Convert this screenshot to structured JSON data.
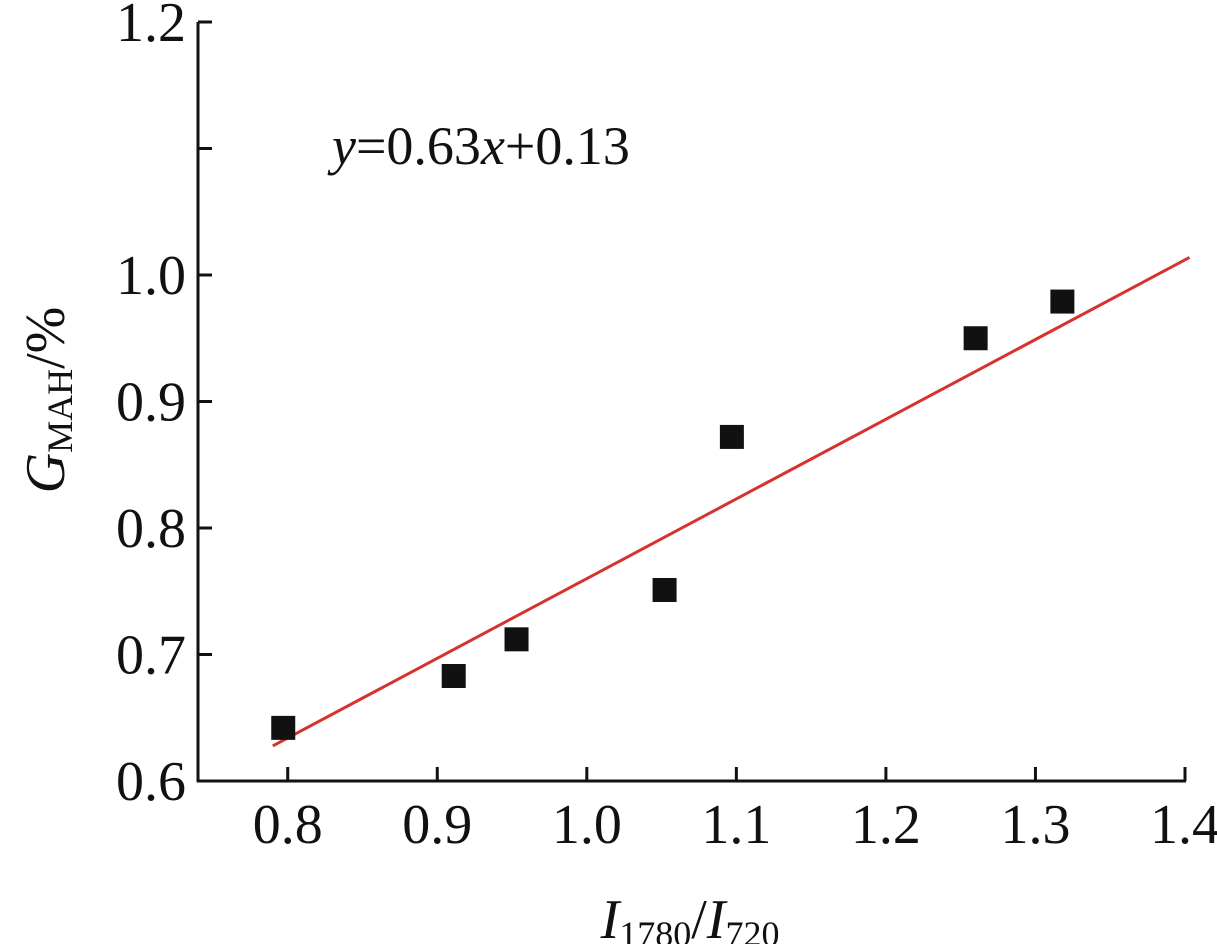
{
  "chart_data": {
    "type": "scatter",
    "title": "",
    "xlabel": {
      "main": "I",
      "sub1": "1780",
      "sep": "/",
      "main2": "I",
      "sub2": "720"
    },
    "ylabel": {
      "main": "G",
      "sub": "MAH",
      "suffix": "/%"
    },
    "xlim": [
      0.74,
      1.4
    ],
    "ylim": [
      0.6,
      1.2
    ],
    "x_ticks": [
      0.8,
      0.9,
      1.0,
      1.1,
      1.2,
      1.3,
      1.4
    ],
    "x_tick_labels": [
      "0.8",
      "0.9",
      "1.0",
      "1.1",
      "1.2",
      "1.3",
      "1.4"
    ],
    "y_ticks": [
      0.6,
      0.7,
      0.8,
      0.9,
      1.0,
      1.2
    ],
    "y_tick_labels": [
      "0.6",
      "0.7",
      "0.8",
      "0.9",
      "1.0",
      "1.2"
    ],
    "y_minor_ticks": [
      1.1
    ],
    "series": [
      {
        "marker": "square",
        "color": "#111111",
        "points": [
          {
            "x": 0.797,
            "y": 0.642
          },
          {
            "x": 0.911,
            "y": 0.683
          },
          {
            "x": 0.953,
            "y": 0.712
          },
          {
            "x": 1.052,
            "y": 0.751
          },
          {
            "x": 1.097,
            "y": 0.872
          },
          {
            "x": 1.26,
            "y": 0.95
          },
          {
            "x": 1.318,
            "y": 0.979
          }
        ]
      }
    ],
    "fit_line": {
      "slope": 0.63,
      "intercept": 0.13,
      "x_range": [
        0.79,
        1.403
      ],
      "color": "#d6332f"
    },
    "annotation": {
      "y_var": "y",
      "middle": "=0.63",
      "x_var": "x",
      "tail": "+0.13"
    },
    "grid": false,
    "legend": "none"
  }
}
